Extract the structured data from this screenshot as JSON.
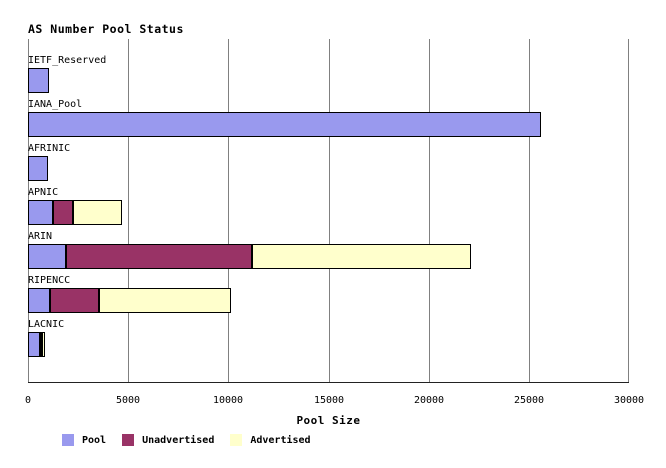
{
  "chart_data": {
    "type": "bar",
    "orientation": "horizontal",
    "stacked": true,
    "title": "AS Number Pool Status",
    "xlabel": "Pool Size",
    "xlim": [
      0,
      30000
    ],
    "xticks": [
      0,
      5000,
      10000,
      15000,
      20000,
      25000,
      30000
    ],
    "grid": "vertical",
    "legend_position": "bottom",
    "categories": [
      "IETF_Reserved",
      "IANA_Pool",
      "AFRINIC",
      "APNIC",
      "ARIN",
      "RIPENCC",
      "LACNIC"
    ],
    "series": [
      {
        "name": "Pool",
        "color": "#9999ee",
        "values": [
          1050,
          25600,
          1000,
          1250,
          1900,
          1100,
          600
        ]
      },
      {
        "name": "Unadvertised",
        "color": "#993366",
        "values": [
          0,
          0,
          0,
          1000,
          9300,
          2450,
          100
        ]
      },
      {
        "name": "Advertised",
        "color": "#ffffcc",
        "values": [
          0,
          0,
          0,
          2450,
          10950,
          6600,
          150
        ]
      }
    ],
    "colors": {
      "pool": "#9999ee",
      "unadvertised": "#993366",
      "advertised": "#ffffcc",
      "gridline": "#808080",
      "axis": "#222222",
      "text": "#000000",
      "background": "#ffffff"
    }
  }
}
